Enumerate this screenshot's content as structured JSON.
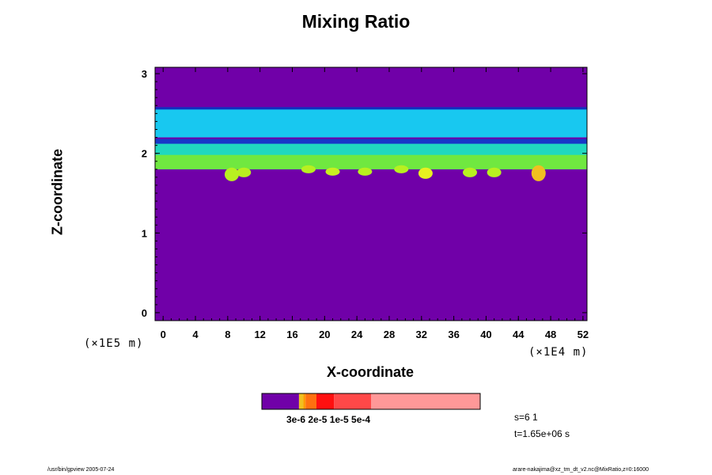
{
  "chart_data": {
    "type": "heatmap",
    "title": "Mixing Ratio",
    "xlabel": "X-coordinate",
    "ylabel": "Z-coordinate",
    "x_unit": "(×1E5 m)",
    "y_unit": "(×1E4 m)",
    "xlim": [
      -1,
      52.5
    ],
    "ylim": [
      -0.1,
      3.08
    ],
    "x_ticks": [
      "0",
      "4",
      "8",
      "12",
      "16",
      "20",
      "24",
      "28",
      "32",
      "36",
      "40",
      "44",
      "48",
      "52"
    ],
    "x_tick_values": [
      0,
      4,
      8,
      12,
      16,
      20,
      24,
      28,
      32,
      36,
      40,
      44,
      48,
      52
    ],
    "y_ticks": [
      "0",
      "1",
      "2",
      "3"
    ],
    "y_tick_values": [
      0,
      1,
      2,
      3
    ],
    "layers": [
      {
        "name": "background",
        "zmin": -0.1,
        "zmax": 3.08,
        "color": "#7000a8"
      },
      {
        "name": "upper-dark-line",
        "zmin": 2.52,
        "zmax": 2.58,
        "color": "#1030c0"
      },
      {
        "name": "upper-band",
        "zmin": 2.2,
        "zmax": 2.55,
        "color": "#18c8f0"
      },
      {
        "name": "middle-dark-line",
        "zmin": 2.1,
        "zmax": 2.18,
        "color": "#1838c8"
      },
      {
        "name": "lower-band",
        "zmin": 1.8,
        "zmax": 2.12,
        "color": "#20d8c0"
      },
      {
        "name": "lower-green",
        "zmin": 1.8,
        "zmax": 1.98,
        "color": "#70e840"
      }
    ],
    "blobs": [
      {
        "x": 8.5,
        "zmin": 1.65,
        "zmax": 1.82,
        "color": "#b8f020"
      },
      {
        "x": 10,
        "zmin": 1.7,
        "zmax": 1.82,
        "color": "#b8f020"
      },
      {
        "x": 18,
        "zmin": 1.75,
        "zmax": 1.85,
        "color": "#b8f020"
      },
      {
        "x": 21,
        "zmin": 1.72,
        "zmax": 1.82,
        "color": "#c8f020"
      },
      {
        "x": 25,
        "zmin": 1.72,
        "zmax": 1.82,
        "color": "#b8f020"
      },
      {
        "x": 29.5,
        "zmin": 1.75,
        "zmax": 1.85,
        "color": "#b8f020"
      },
      {
        "x": 32.5,
        "zmin": 1.68,
        "zmax": 1.82,
        "color": "#e8f020"
      },
      {
        "x": 38,
        "zmin": 1.7,
        "zmax": 1.82,
        "color": "#b8f020"
      },
      {
        "x": 41,
        "zmin": 1.7,
        "zmax": 1.82,
        "color": "#b8f020"
      },
      {
        "x": 46.5,
        "zmin": 1.65,
        "zmax": 1.85,
        "color": "#f0c020"
      }
    ],
    "colorbar": {
      "colors": [
        "#7000a8",
        "#f0c020",
        "#ff9a00",
        "#ff7010",
        "#ff1010",
        "#ff4848",
        "#ff9898"
      ],
      "boundaries": [
        0,
        0.17,
        0.19,
        0.2,
        0.25,
        0.33,
        0.5,
        1.0
      ],
      "tick_label": "3e-6 2e-5 1e-5 5e-4"
    }
  },
  "info": {
    "step": "s=6 1",
    "time": "t=1.65e+06 s"
  },
  "footer": {
    "left": "/usr/bin/gpview 2005-07-24",
    "right": "arare-nakajima@xz_tm_dt_v2.nc@MixRatio,z=0:16000"
  }
}
